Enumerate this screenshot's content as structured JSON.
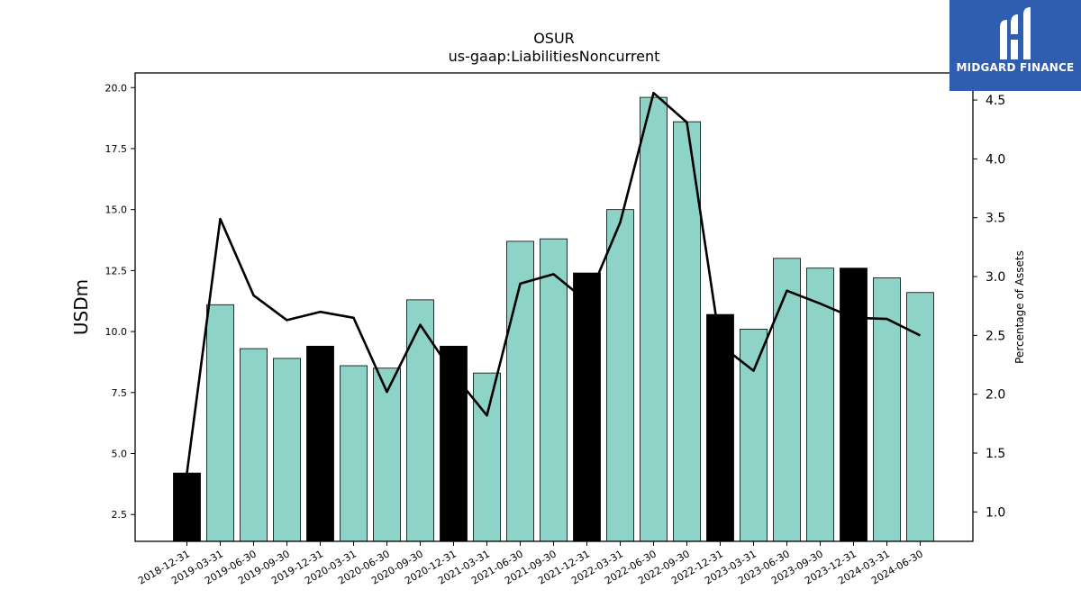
{
  "chart_data": {
    "type": "bar",
    "title": "OSUR",
    "subtitle": "us-gaap:LiabilitiesNoncurrent",
    "ylabel": "USDm",
    "y2label": "Percentage of Assets",
    "ylim": [
      1.4,
      20.6
    ],
    "y2lim": [
      0.75,
      4.73
    ],
    "yticks": [
      "2.5",
      "5.0",
      "7.5",
      "10.0",
      "12.5",
      "15.0",
      "17.5",
      "20.0"
    ],
    "y2ticks": [
      "1.0",
      "1.5",
      "2.0",
      "2.5",
      "3.0",
      "3.5",
      "4.0",
      "4.5"
    ],
    "categories": [
      "2018-12-31",
      "2019-03-31",
      "2019-06-30",
      "2019-09-30",
      "2019-12-31",
      "2020-03-31",
      "2020-06-30",
      "2020-09-30",
      "2020-12-31",
      "2021-03-31",
      "2021-06-30",
      "2021-09-30",
      "2021-12-31",
      "2022-03-31",
      "2022-06-30",
      "2022-09-30",
      "2022-12-31",
      "2023-03-31",
      "2023-06-30",
      "2023-09-30",
      "2023-12-31",
      "2024-03-31",
      "2024-06-30"
    ],
    "series": [
      {
        "kind": "bar",
        "values": [
          4.2,
          11.1,
          9.3,
          8.9,
          9.4,
          8.6,
          8.5,
          11.3,
          9.4,
          8.3,
          13.7,
          13.8,
          12.4,
          15.0,
          19.6,
          18.6,
          10.7,
          10.1,
          13.0,
          12.6,
          12.6,
          12.2,
          11.6
        ],
        "year_end": [
          true,
          false,
          false,
          false,
          true,
          false,
          false,
          false,
          true,
          false,
          false,
          false,
          true,
          false,
          false,
          false,
          true,
          false,
          false,
          false,
          true,
          false,
          false
        ]
      },
      {
        "kind": "line",
        "axis": "right",
        "values": [
          1.33,
          3.49,
          2.84,
          2.63,
          2.7,
          2.65,
          2.02,
          2.59,
          2.17,
          1.82,
          2.94,
          3.02,
          2.79,
          3.46,
          4.56,
          4.31,
          2.42,
          2.2,
          2.88,
          2.77,
          2.65,
          2.64,
          2.5
        ]
      }
    ],
    "colors": {
      "bar": "#8dd3c7",
      "bar_year_end": "#000000",
      "line": "#000000"
    },
    "grid": false
  },
  "logo": {
    "text": "MIDGARD FINANCE"
  }
}
